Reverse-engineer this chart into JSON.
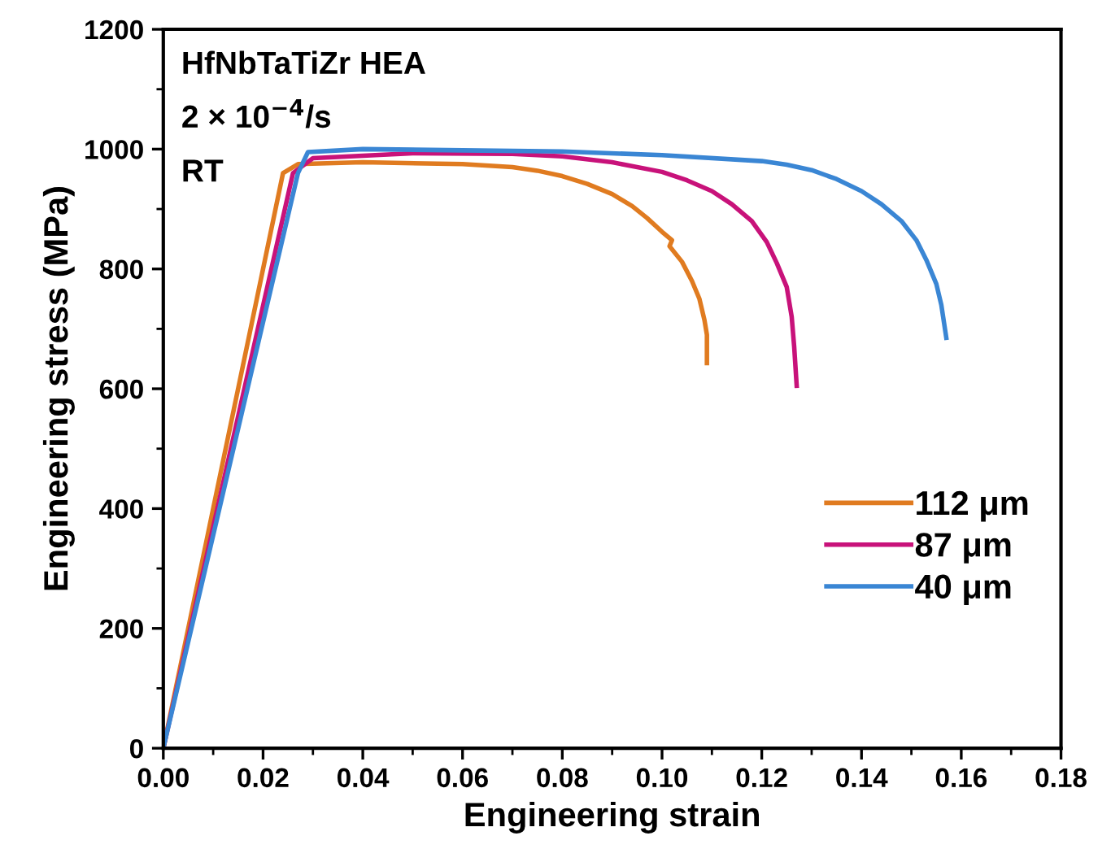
{
  "chart_data": {
    "type": "line",
    "xlabel": "Engineering strain",
    "ylabel": "Engineering stress (MPa)",
    "annotations": [
      "HfNbTaTiZr HEA",
      "2 × 10$^{−4}$/s",
      "RT"
    ],
    "xlim": [
      0,
      0.18
    ],
    "ylim": [
      0,
      1200
    ],
    "xticks": [
      {
        "value": 0,
        "label": "0.00"
      },
      {
        "value": 0.02,
        "label": "0.02"
      },
      {
        "value": 0.04,
        "label": "0.04"
      },
      {
        "value": 0.06,
        "label": "0.06"
      },
      {
        "value": 0.08,
        "label": "0.08"
      },
      {
        "value": 0.1,
        "label": "0.10"
      },
      {
        "value": 0.12,
        "label": "0.12"
      },
      {
        "value": 0.14,
        "label": "0.14"
      },
      {
        "value": 0.16,
        "label": "0.16"
      },
      {
        "value": 0.18,
        "label": "0.18"
      }
    ],
    "yticks": [
      0,
      200,
      400,
      600,
      800,
      1000,
      1200
    ],
    "grid": false,
    "legend": "bottom right",
    "line_style": "solid",
    "marker": "none",
    "series": [
      {
        "name": "112 μm",
        "color": "#e07b20",
        "x": [
          0,
          0.024,
          0.027,
          0.04,
          0.06,
          0.07,
          0.075,
          0.08,
          0.085,
          0.09,
          0.094,
          0.097,
          0.1,
          0.102,
          0.1015,
          0.104,
          0.106,
          0.1075,
          0.1085,
          0.109,
          0.109
        ],
        "values": [
          0,
          960,
          975,
          978,
          975,
          970,
          964,
          955,
          942,
          925,
          905,
          885,
          862,
          848,
          838,
          812,
          780,
          750,
          715,
          690,
          643
        ]
      },
      {
        "name": "87 μm",
        "color": "#c8127a",
        "x": [
          0,
          0.026,
          0.03,
          0.05,
          0.07,
          0.08,
          0.09,
          0.1,
          0.105,
          0.11,
          0.114,
          0.118,
          0.121,
          0.123,
          0.125,
          0.126,
          0.1265,
          0.127
        ],
        "values": [
          0,
          960,
          985,
          993,
          992,
          988,
          978,
          962,
          948,
          930,
          908,
          880,
          845,
          810,
          770,
          720,
          670,
          605
        ]
      },
      {
        "name": "40 μm",
        "color": "#3a86d4",
        "x": [
          0,
          0.027,
          0.029,
          0.04,
          0.06,
          0.08,
          0.1,
          0.12,
          0.125,
          0.13,
          0.135,
          0.14,
          0.144,
          0.148,
          0.151,
          0.153,
          0.155,
          0.156,
          0.157
        ],
        "values": [
          0,
          960,
          995,
          1000,
          998,
          996,
          990,
          980,
          974,
          965,
          950,
          930,
          908,
          880,
          848,
          815,
          775,
          740,
          685
        ]
      }
    ]
  }
}
